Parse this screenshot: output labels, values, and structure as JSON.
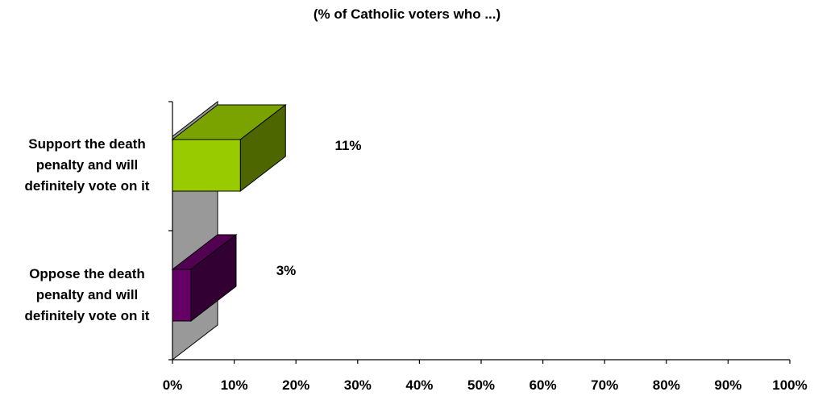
{
  "chart_data": {
    "type": "bar",
    "orientation": "horizontal",
    "style": "3d",
    "title": "(% of Catholic voters who ...)",
    "categories": [
      "Support the death penalty and will definitely vote on it",
      "Oppose the death penalty and will definitely vote on it"
    ],
    "category_lines": [
      [
        "Support the death",
        "penalty and will",
        "definitely vote on it"
      ],
      [
        "Oppose the death",
        "penalty and will",
        "definitely vote on it"
      ]
    ],
    "values": [
      11,
      3
    ],
    "data_labels": [
      "11%",
      "3%"
    ],
    "xlim": [
      0,
      100
    ],
    "xticks": [
      "0%",
      "10%",
      "20%",
      "30%",
      "40%",
      "50%",
      "60%",
      "70%",
      "80%",
      "90%",
      "100%"
    ],
    "grid": false,
    "legend": "none",
    "colors": {
      "bar_front": [
        "#99cc00",
        "#660066"
      ],
      "bar_top": [
        "#7aa300",
        "#520052"
      ],
      "bar_side": [
        "#4d6600",
        "#330033"
      ],
      "wall": "#999999",
      "axis": "#000000"
    }
  }
}
